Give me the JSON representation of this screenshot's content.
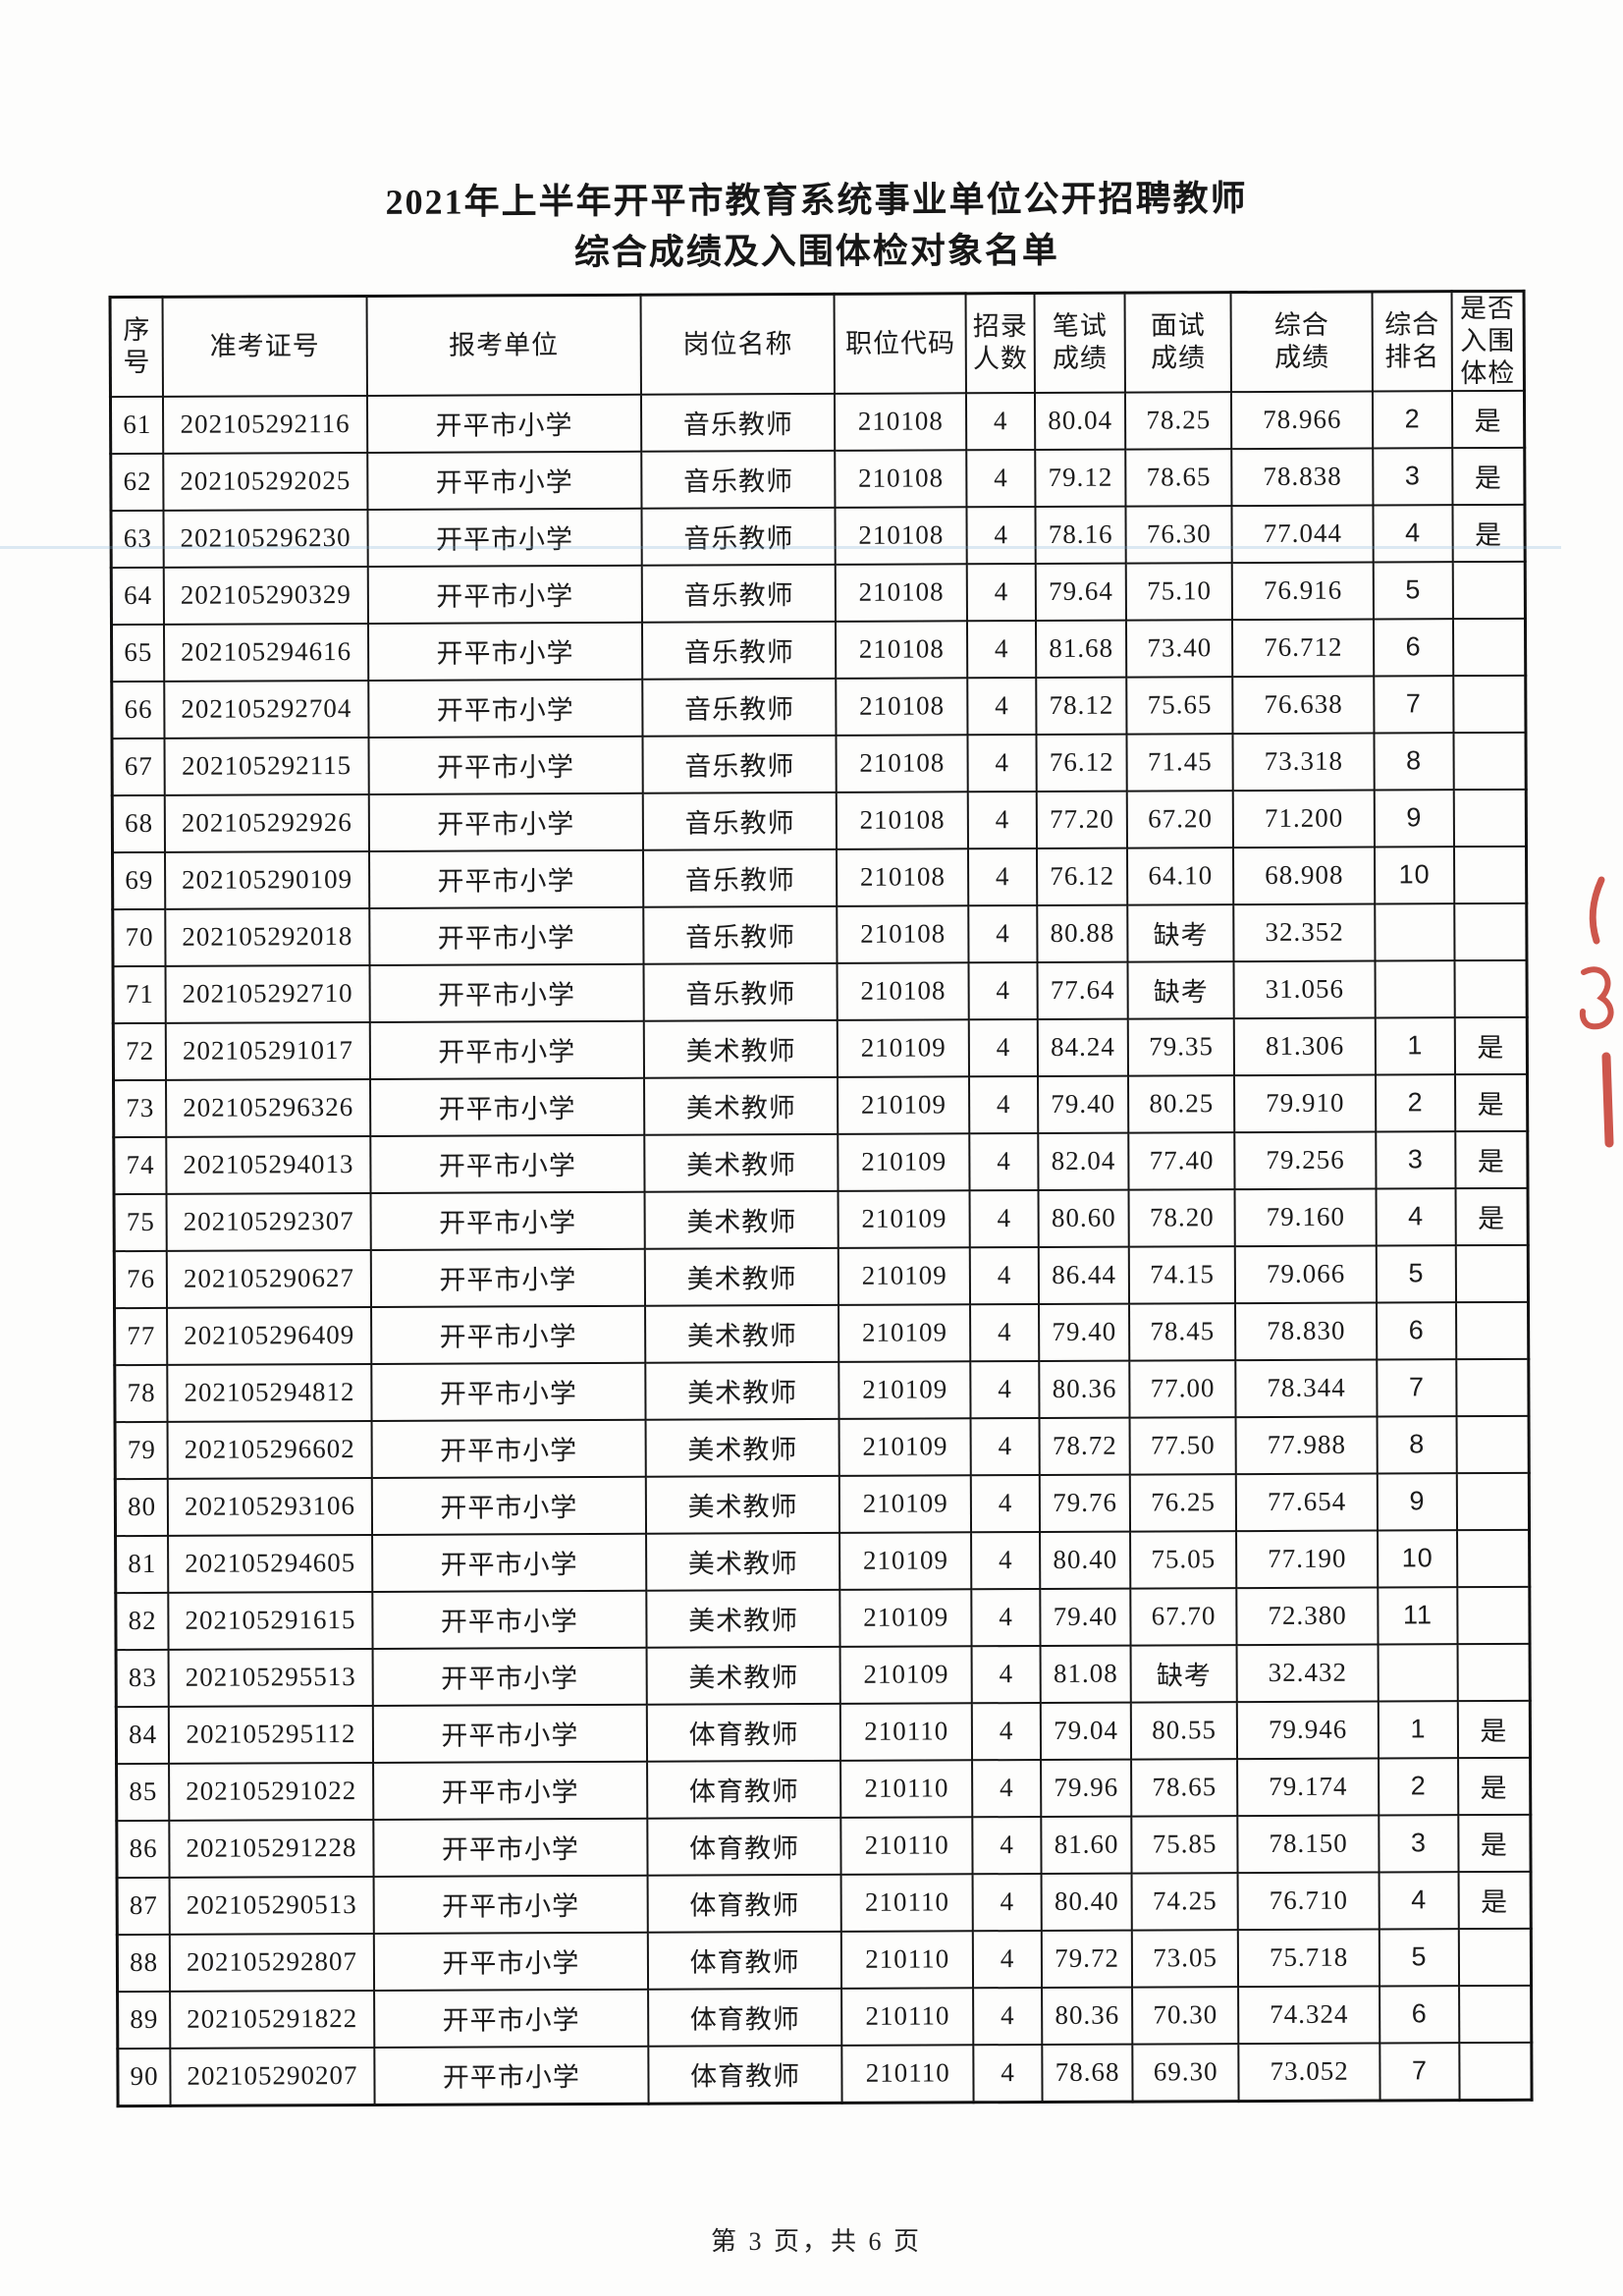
{
  "page": {
    "title_line1": "2021年上半年开平市教育系统事业单位公开招聘教师",
    "title_line2": "综合成绩及入围体检对象名单",
    "footer": "第 3 页，共 6 页"
  },
  "stamp": {
    "name": "red-seal-fragment",
    "color": "#c53a2e"
  },
  "table": {
    "column_keys": [
      "seq",
      "exam-id",
      "unit",
      "position",
      "code",
      "quota",
      "written",
      "interview",
      "composite",
      "rank",
      "shortlisted"
    ],
    "column_widths_pct": [
      3.74,
      14.4,
      19.4,
      13.7,
      9.3,
      4.85,
      6.4,
      7.5,
      10.0,
      5.6,
      5.11
    ],
    "headers": [
      {
        "key": "seq",
        "label": "序\n号"
      },
      {
        "key": "exam-id",
        "label": "准考证号"
      },
      {
        "key": "unit",
        "label": "报考单位"
      },
      {
        "key": "position",
        "label": "岗位名称"
      },
      {
        "key": "code",
        "label": "职位代码"
      },
      {
        "key": "quota",
        "label": "招录\n人数"
      },
      {
        "key": "written",
        "label": "笔试\n成绩"
      },
      {
        "key": "interview",
        "label": "面试\n成绩"
      },
      {
        "key": "composite",
        "label": "综合\n成绩"
      },
      {
        "key": "rank",
        "label": "综合\n排名"
      },
      {
        "key": "shortlisted",
        "label": "是否\n入围\n体检"
      }
    ],
    "rows": [
      [
        "61",
        "202105292116",
        "开平市小学",
        "音乐教师",
        "210108",
        "4",
        "80.04",
        "78.25",
        "78.966",
        "2",
        "是"
      ],
      [
        "62",
        "202105292025",
        "开平市小学",
        "音乐教师",
        "210108",
        "4",
        "79.12",
        "78.65",
        "78.838",
        "3",
        "是"
      ],
      [
        "63",
        "202105296230",
        "开平市小学",
        "音乐教师",
        "210108",
        "4",
        "78.16",
        "76.30",
        "77.044",
        "4",
        "是"
      ],
      [
        "64",
        "202105290329",
        "开平市小学",
        "音乐教师",
        "210108",
        "4",
        "79.64",
        "75.10",
        "76.916",
        "5",
        ""
      ],
      [
        "65",
        "202105294616",
        "开平市小学",
        "音乐教师",
        "210108",
        "4",
        "81.68",
        "73.40",
        "76.712",
        "6",
        ""
      ],
      [
        "66",
        "202105292704",
        "开平市小学",
        "音乐教师",
        "210108",
        "4",
        "78.12",
        "75.65",
        "76.638",
        "7",
        ""
      ],
      [
        "67",
        "202105292115",
        "开平市小学",
        "音乐教师",
        "210108",
        "4",
        "76.12",
        "71.45",
        "73.318",
        "8",
        ""
      ],
      [
        "68",
        "202105292926",
        "开平市小学",
        "音乐教师",
        "210108",
        "4",
        "77.20",
        "67.20",
        "71.200",
        "9",
        ""
      ],
      [
        "69",
        "202105290109",
        "开平市小学",
        "音乐教师",
        "210108",
        "4",
        "76.12",
        "64.10",
        "68.908",
        "10",
        ""
      ],
      [
        "70",
        "202105292018",
        "开平市小学",
        "音乐教师",
        "210108",
        "4",
        "80.88",
        "缺考",
        "32.352",
        "",
        ""
      ],
      [
        "71",
        "202105292710",
        "开平市小学",
        "音乐教师",
        "210108",
        "4",
        "77.64",
        "缺考",
        "31.056",
        "",
        ""
      ],
      [
        "72",
        "202105291017",
        "开平市小学",
        "美术教师",
        "210109",
        "4",
        "84.24",
        "79.35",
        "81.306",
        "1",
        "是"
      ],
      [
        "73",
        "202105296326",
        "开平市小学",
        "美术教师",
        "210109",
        "4",
        "79.40",
        "80.25",
        "79.910",
        "2",
        "是"
      ],
      [
        "74",
        "202105294013",
        "开平市小学",
        "美术教师",
        "210109",
        "4",
        "82.04",
        "77.40",
        "79.256",
        "3",
        "是"
      ],
      [
        "75",
        "202105292307",
        "开平市小学",
        "美术教师",
        "210109",
        "4",
        "80.60",
        "78.20",
        "79.160",
        "4",
        "是"
      ],
      [
        "76",
        "202105290627",
        "开平市小学",
        "美术教师",
        "210109",
        "4",
        "86.44",
        "74.15",
        "79.066",
        "5",
        ""
      ],
      [
        "77",
        "202105296409",
        "开平市小学",
        "美术教师",
        "210109",
        "4",
        "79.40",
        "78.45",
        "78.830",
        "6",
        ""
      ],
      [
        "78",
        "202105294812",
        "开平市小学",
        "美术教师",
        "210109",
        "4",
        "80.36",
        "77.00",
        "78.344",
        "7",
        ""
      ],
      [
        "79",
        "202105296602",
        "开平市小学",
        "美术教师",
        "210109",
        "4",
        "78.72",
        "77.50",
        "77.988",
        "8",
        ""
      ],
      [
        "80",
        "202105293106",
        "开平市小学",
        "美术教师",
        "210109",
        "4",
        "79.76",
        "76.25",
        "77.654",
        "9",
        ""
      ],
      [
        "81",
        "202105294605",
        "开平市小学",
        "美术教师",
        "210109",
        "4",
        "80.40",
        "75.05",
        "77.190",
        "10",
        ""
      ],
      [
        "82",
        "202105291615",
        "开平市小学",
        "美术教师",
        "210109",
        "4",
        "79.40",
        "67.70",
        "72.380",
        "11",
        ""
      ],
      [
        "83",
        "202105295513",
        "开平市小学",
        "美术教师",
        "210109",
        "4",
        "81.08",
        "缺考",
        "32.432",
        "",
        ""
      ],
      [
        "84",
        "202105295112",
        "开平市小学",
        "体育教师",
        "210110",
        "4",
        "79.04",
        "80.55",
        "79.946",
        "1",
        "是"
      ],
      [
        "85",
        "202105291022",
        "开平市小学",
        "体育教师",
        "210110",
        "4",
        "79.96",
        "78.65",
        "79.174",
        "2",
        "是"
      ],
      [
        "86",
        "202105291228",
        "开平市小学",
        "体育教师",
        "210110",
        "4",
        "81.60",
        "75.85",
        "78.150",
        "3",
        "是"
      ],
      [
        "87",
        "202105290513",
        "开平市小学",
        "体育教师",
        "210110",
        "4",
        "80.40",
        "74.25",
        "76.710",
        "4",
        "是"
      ],
      [
        "88",
        "202105292807",
        "开平市小学",
        "体育教师",
        "210110",
        "4",
        "79.72",
        "73.05",
        "75.718",
        "5",
        ""
      ],
      [
        "89",
        "202105291822",
        "开平市小学",
        "体育教师",
        "210110",
        "4",
        "80.36",
        "70.30",
        "74.324",
        "6",
        ""
      ],
      [
        "90",
        "202105290207",
        "开平市小学",
        "体育教师",
        "210110",
        "4",
        "78.68",
        "69.30",
        "73.052",
        "7",
        ""
      ]
    ]
  }
}
